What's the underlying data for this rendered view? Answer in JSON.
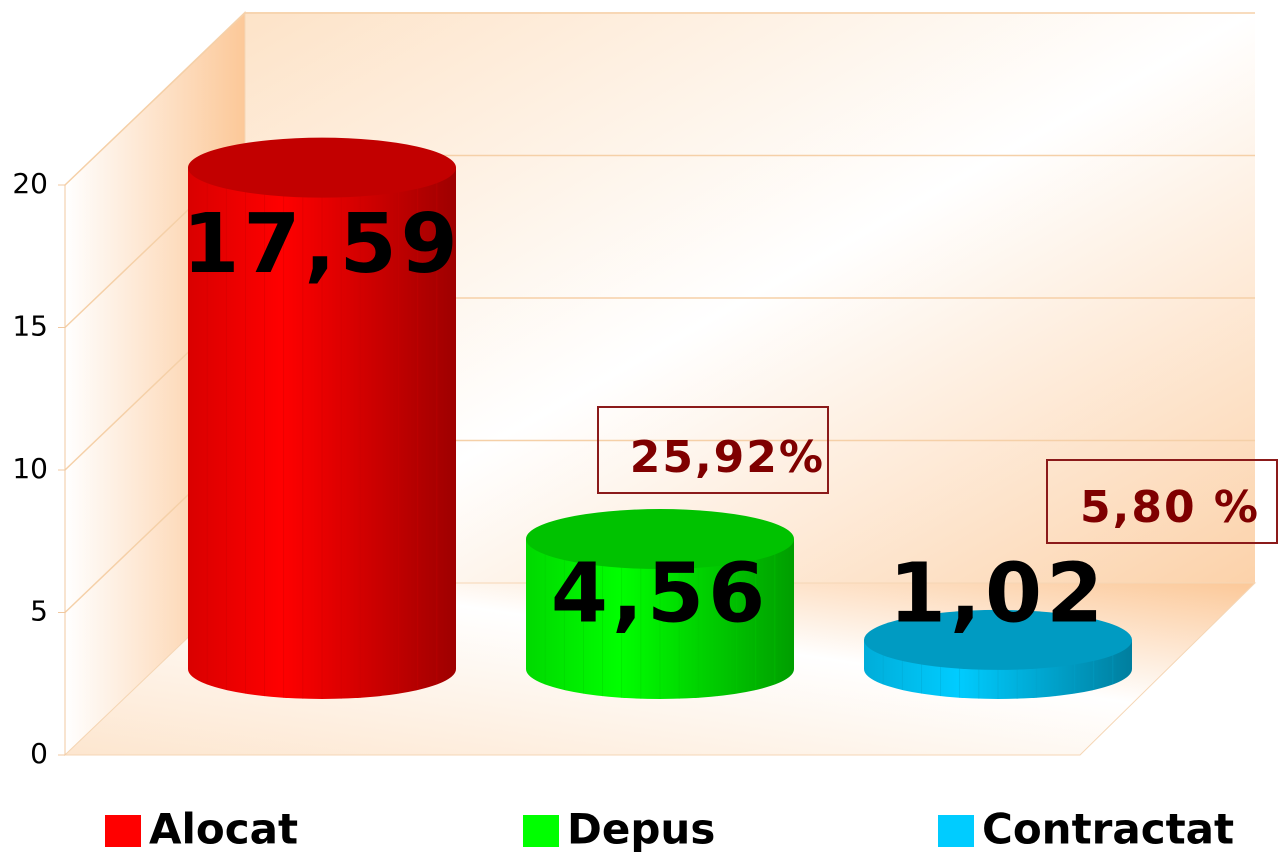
{
  "chart_data": {
    "type": "bar",
    "categories": [
      "Alocat",
      "Depus",
      "Contractat"
    ],
    "values": [
      17.59,
      4.56,
      1.02
    ],
    "value_labels": [
      "17,59",
      "4,56",
      "1,02"
    ],
    "colors": [
      "#ff0000",
      "#00ff00",
      "#00ccff"
    ],
    "ylim": [
      0,
      20
    ],
    "yticks": [
      0,
      5,
      10,
      15,
      20
    ],
    "grid": true,
    "annotations": [
      "25,92%",
      "5,80 %"
    ],
    "legend": "bottom"
  }
}
